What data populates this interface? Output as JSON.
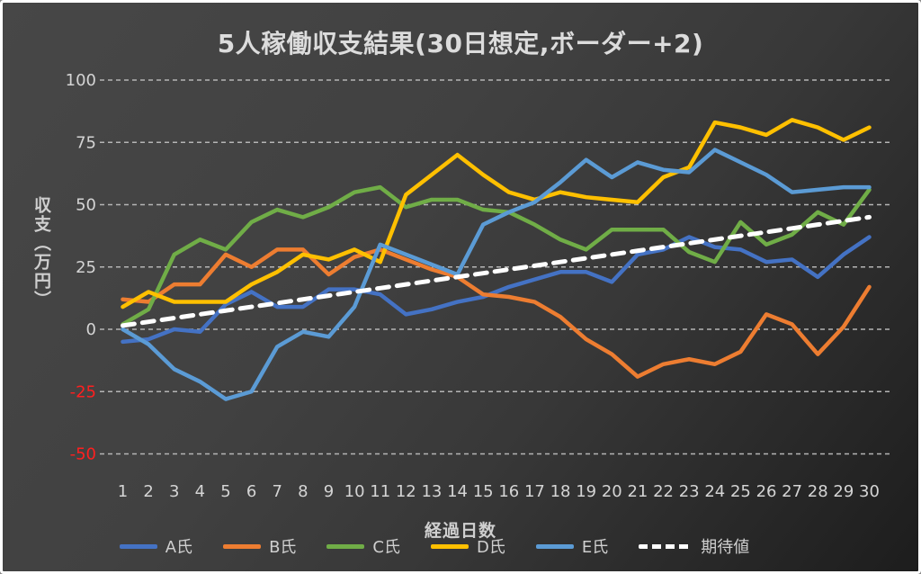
{
  "chart_data": {
    "type": "line",
    "title": "5人稼働収支結果(30日想定,ボーダー+2)",
    "xlabel": "経過日数",
    "ylabel": "収支（万円）",
    "x": [
      1,
      2,
      3,
      4,
      5,
      6,
      7,
      8,
      9,
      10,
      11,
      12,
      13,
      14,
      15,
      16,
      17,
      18,
      19,
      20,
      21,
      22,
      23,
      24,
      25,
      26,
      27,
      28,
      29,
      30
    ],
    "ylim": [
      -50,
      100
    ],
    "yticks": [
      100,
      75,
      50,
      25,
      0,
      -25,
      -50
    ],
    "grid": true,
    "grid_color": "#b5b5b5",
    "tick_color": "#d4d4d4",
    "negative_tick_color": "#ff1f1f",
    "legend_position": "bottom",
    "series": [
      {
        "name": "A氏",
        "color": "#4472C4",
        "dashed": false,
        "values": [
          -5,
          -4,
          0,
          -1,
          10,
          15,
          9,
          9,
          16,
          16,
          14,
          6,
          8,
          11,
          13,
          17,
          20,
          23,
          23,
          19,
          30,
          32,
          37,
          33,
          32,
          27,
          28,
          21,
          30,
          37
        ]
      },
      {
        "name": "B氏",
        "color": "#ED7D31",
        "dashed": false,
        "values": [
          12,
          11,
          18,
          18,
          30,
          25,
          32,
          32,
          22,
          29,
          32,
          28,
          24,
          21,
          14,
          13,
          11,
          5,
          -4,
          -10,
          -19,
          -14,
          -12,
          -14,
          -9,
          6,
          2,
          -10,
          1,
          17
        ]
      },
      {
        "name": "C氏",
        "color": "#70AD47",
        "dashed": false,
        "values": [
          2,
          8,
          30,
          36,
          32,
          43,
          48,
          45,
          49,
          55,
          57,
          49,
          52,
          52,
          48,
          47,
          42,
          36,
          32,
          40,
          40,
          40,
          31,
          27,
          43,
          34,
          38,
          47,
          42,
          56
        ]
      },
      {
        "name": "D氏",
        "color": "#FFC000",
        "dashed": false,
        "values": [
          9,
          15,
          11,
          11,
          11,
          18,
          23,
          30,
          28,
          32,
          27,
          54,
          62,
          70,
          62,
          55,
          52,
          55,
          53,
          52,
          51,
          61,
          65,
          83,
          81,
          78,
          84,
          81,
          76,
          81
        ]
      },
      {
        "name": "E氏",
        "color": "#5B9BD5",
        "dashed": false,
        "values": [
          0,
          -6,
          -16,
          -21,
          -28,
          -25,
          -7,
          -1,
          -3,
          9,
          34,
          30,
          26,
          22,
          42,
          47,
          51,
          59,
          68,
          61,
          67,
          64,
          63,
          72,
          67,
          62,
          55,
          56,
          57,
          57
        ]
      },
      {
        "name": "期待値",
        "color": "#FFFFFF",
        "dashed": true,
        "values": [
          1.5,
          3,
          4.5,
          6,
          7.5,
          9,
          10.5,
          12,
          13.5,
          15,
          16.5,
          18,
          19.5,
          21,
          22.5,
          24,
          25.5,
          27,
          28.5,
          30,
          31.5,
          33,
          34.5,
          36,
          37.5,
          39,
          40.5,
          42,
          43.5,
          45
        ]
      }
    ]
  }
}
